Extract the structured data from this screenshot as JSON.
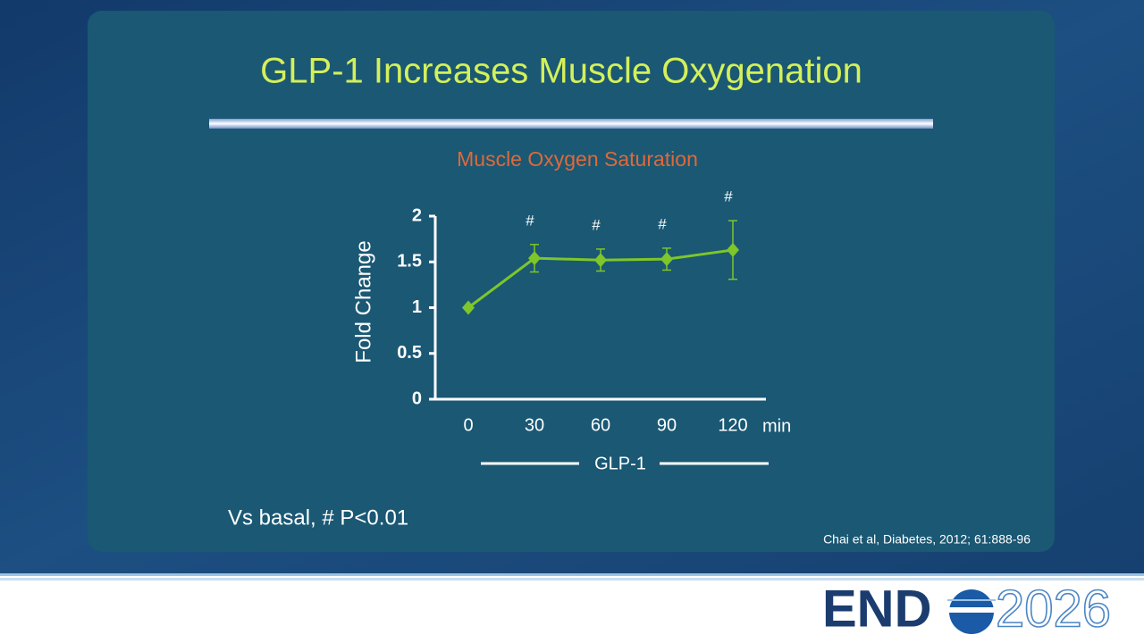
{
  "slide": {
    "title": "GLP-1 Increases Muscle Oxygenation",
    "footnote": "Vs basal, # P<0.01",
    "citation": "Chai et al, Diabetes, 2012; 61:888-96"
  },
  "logo": {
    "left": "END",
    "right": "2026"
  },
  "chart_data": {
    "type": "line",
    "title": "Muscle Oxygen Saturation",
    "y_label": "Fold Change",
    "x_unit": "min",
    "x_label": "GLP-1",
    "x": [
      0,
      30,
      60,
      90,
      120
    ],
    "values": [
      1,
      1.54,
      1.52,
      1.53,
      1.63
    ],
    "errors": [
      0,
      0.15,
      0.12,
      0.12,
      0.32
    ],
    "annotations": [
      null,
      "#",
      "#",
      "#",
      "#"
    ],
    "color": "#7ec62a",
    "xlim": [
      -15,
      135
    ],
    "xticks": [
      0,
      30,
      60,
      90,
      120
    ],
    "ylim": [
      0,
      2
    ],
    "yticks": [
      0,
      0.5,
      1,
      1.5,
      2
    ]
  }
}
